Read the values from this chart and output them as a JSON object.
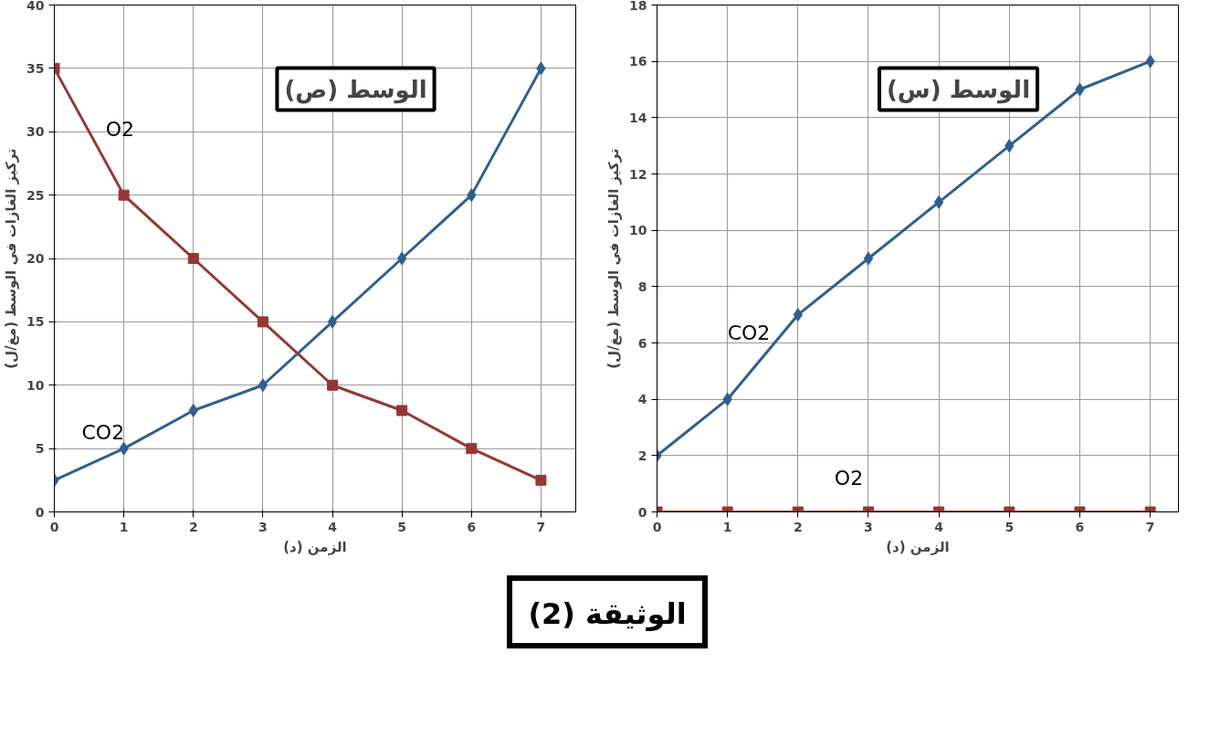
{
  "chart_data": [
    {
      "type": "line",
      "title": "الوسط (ص)",
      "xlabel": "الزمن (د)",
      "ylabel": "تركيز الغازات في الوسط (مغ/ل)",
      "x": [
        0,
        1,
        2,
        3,
        4,
        5,
        6,
        7
      ],
      "xlim": [
        0,
        7.5
      ],
      "xticks": [
        0,
        1,
        2,
        3,
        4,
        5,
        6,
        7
      ],
      "ylim": [
        0,
        40
      ],
      "yticks": [
        0,
        5,
        10,
        15,
        20,
        25,
        30,
        35,
        40
      ],
      "grid": true,
      "line_style": "solid",
      "series": [
        {
          "name": "CO2",
          "color": "#2f5f8f",
          "marker": "diamond",
          "values": [
            2.5,
            5,
            8,
            10,
            15,
            20,
            25,
            35
          ]
        },
        {
          "name": "O2",
          "color": "#953735",
          "marker": "square",
          "values": [
            35,
            25,
            20,
            15,
            10,
            8,
            5,
            2.5
          ]
        }
      ],
      "annotations": [
        "الوثيقة (2)"
      ]
    },
    {
      "type": "line",
      "title": "الوسط (س)",
      "xlabel": "الزمن (د)",
      "ylabel": "تركيز الغازات في الوسط (مغ/ل)",
      "x": [
        0,
        1,
        2,
        3,
        4,
        5,
        6,
        7
      ],
      "xlim": [
        0,
        7.4
      ],
      "xticks": [
        0,
        1,
        2,
        3,
        4,
        5,
        6,
        7
      ],
      "ylim": [
        0,
        18
      ],
      "yticks": [
        0,
        2,
        4,
        6,
        8,
        10,
        12,
        14,
        16,
        18
      ],
      "grid": true,
      "line_style": "solid",
      "series": [
        {
          "name": "CO2",
          "color": "#2f5f8f",
          "marker": "diamond",
          "values": [
            2,
            4,
            7,
            9,
            11,
            13,
            15,
            16
          ]
        },
        {
          "name": "O2",
          "color": "#953735",
          "marker": "square",
          "values": [
            0,
            0,
            0,
            0,
            0,
            0,
            0,
            0
          ]
        }
      ]
    }
  ]
}
